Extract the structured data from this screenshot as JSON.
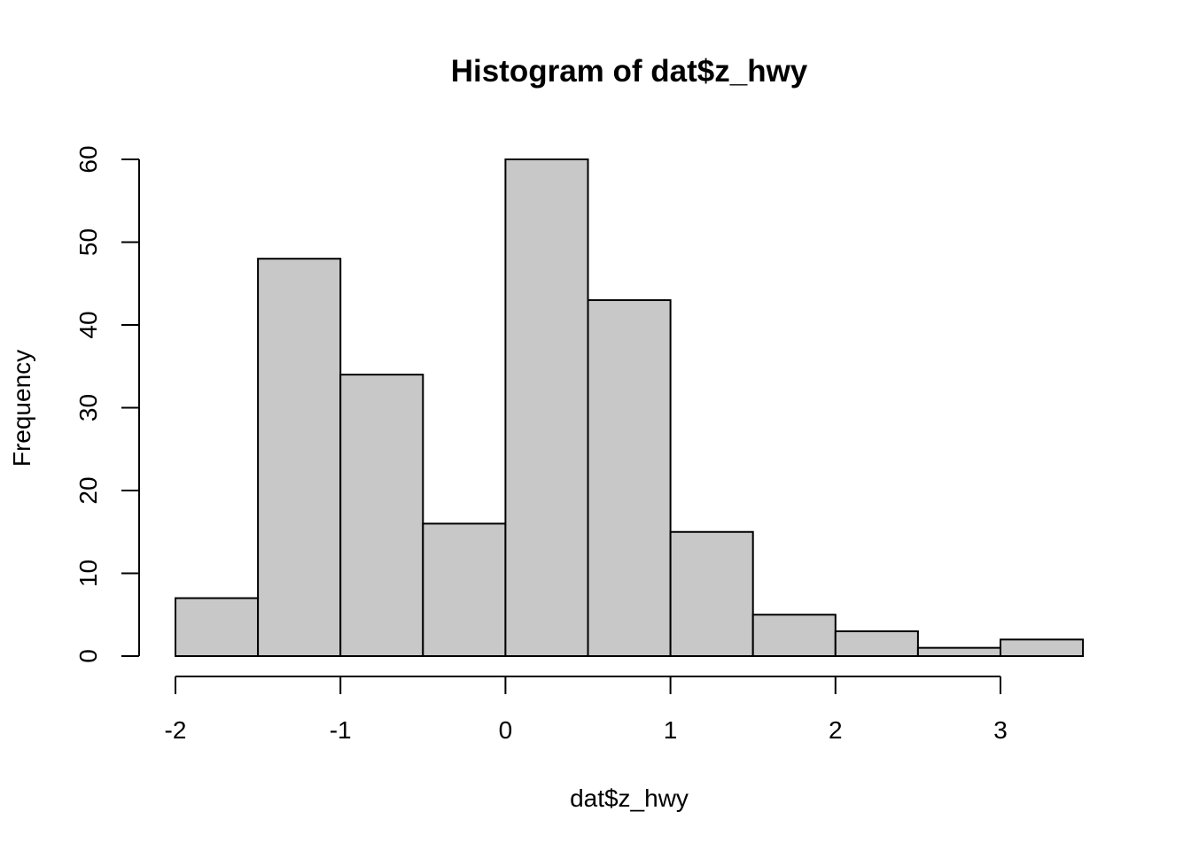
{
  "chart_data": {
    "type": "bar",
    "title": "Histogram of dat$z_hwy",
    "xlabel": "dat$z_hwy",
    "ylabel": "Frequency",
    "bins": [
      {
        "from": -2.0,
        "to": -1.5,
        "count": 7
      },
      {
        "from": -1.5,
        "to": -1.0,
        "count": 48
      },
      {
        "from": -1.0,
        "to": -0.5,
        "count": 34
      },
      {
        "from": -0.5,
        "to": 0.0,
        "count": 16
      },
      {
        "from": 0.0,
        "to": 0.5,
        "count": 60
      },
      {
        "from": 0.5,
        "to": 1.0,
        "count": 43
      },
      {
        "from": 1.0,
        "to": 1.5,
        "count": 15
      },
      {
        "from": 1.5,
        "to": 2.0,
        "count": 5
      },
      {
        "from": 2.0,
        "to": 2.5,
        "count": 3
      },
      {
        "from": 2.5,
        "to": 3.0,
        "count": 1
      },
      {
        "from": 3.0,
        "to": 3.5,
        "count": 2
      }
    ],
    "xlim": [
      -2,
      3.5
    ],
    "ylim": [
      0,
      60
    ],
    "x_ticks": [
      -2,
      -1,
      0,
      1,
      2,
      3
    ],
    "y_ticks": [
      0,
      10,
      20,
      30,
      40,
      50,
      60
    ],
    "grid": false,
    "bar_color": "#c8c8c8",
    "border_color": "#000000"
  }
}
